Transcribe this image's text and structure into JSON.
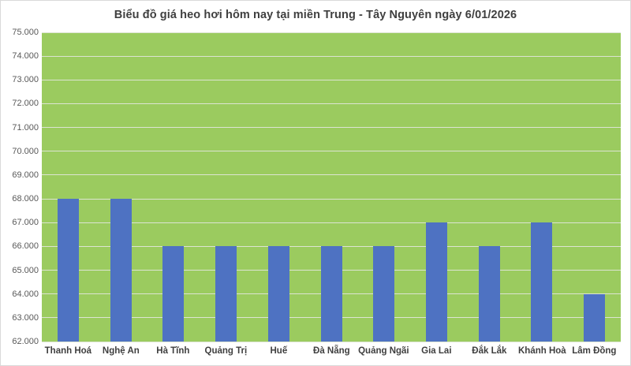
{
  "chart_data": {
    "type": "bar",
    "title": "Biểu đồ giá heo hơi hôm nay tại miền Trung - Tây Nguyên ngày 6/01/2026",
    "categories": [
      "Thanh Hoá",
      "Nghệ An",
      "Hà Tĩnh",
      "Quảng Trị",
      "Huế",
      "Đà Nẵng",
      "Quảng Ngãi",
      "Gia Lai",
      "Đắk Lắk",
      "Khánh Hoà",
      "Lâm Đồng"
    ],
    "values": [
      68000,
      68000,
      66000,
      66000,
      66000,
      66000,
      66000,
      67000,
      66000,
      67000,
      64000
    ],
    "xlabel": "",
    "ylabel": "",
    "ylim": [
      62000,
      75000
    ],
    "y_tick_step": 1000,
    "y_tick_labels": [
      "62.000",
      "63.000",
      "64.000",
      "65.000",
      "66.000",
      "67.000",
      "68.000",
      "69.000",
      "70.000",
      "71.000",
      "72.000",
      "73.000",
      "74.000",
      "75.000"
    ],
    "grid": true,
    "legend_position": "none",
    "colors": {
      "bar": "#4e72c2",
      "plot_background": "#9bcb5f",
      "gridline": "#dce4d2",
      "title_text": "#3f3f3f",
      "axis_tick_text": "#595959",
      "category_text": "#3f3f3f",
      "chart_background": "#ffffff",
      "chart_border": "#d9d9d9"
    }
  }
}
